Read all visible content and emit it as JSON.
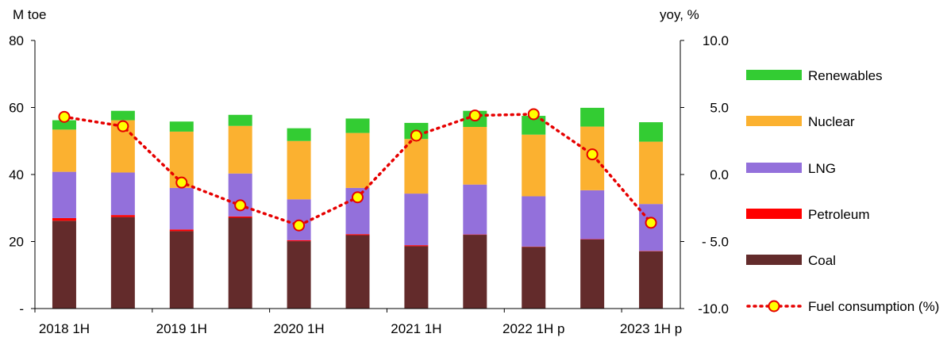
{
  "chart_data": {
    "type": "bar",
    "stacked": true,
    "left_unit": "M toe",
    "right_unit": "yoy, %",
    "y_left": {
      "min": 0,
      "max": 80,
      "ticks": [
        0,
        20,
        40,
        60,
        80
      ],
      "tick_labels": [
        "-",
        "20",
        "40",
        "60",
        "80"
      ]
    },
    "y_right": {
      "min": -10,
      "max": 10,
      "ticks": [
        -10,
        -5,
        0,
        5,
        10
      ],
      "tick_labels": [
        "-10.0",
        "- 5.0",
        "0.0",
        "5.0",
        "10.0"
      ]
    },
    "x_tick_labels": [
      {
        "index": 0,
        "label": "2018 1H"
      },
      {
        "index": 2,
        "label": "2019 1H"
      },
      {
        "index": 4,
        "label": "2020 1H"
      },
      {
        "index": 6,
        "label": "2021 1H"
      },
      {
        "index": 8,
        "label": "2022 1H p"
      },
      {
        "index": 10,
        "label": "2023 1H p"
      }
    ],
    "periods": 11,
    "series": [
      {
        "name": "Coal",
        "color": "#632B2B",
        "values": [
          26.2,
          27.3,
          23.1,
          27.1,
          20.1,
          21.9,
          18.6,
          22.0,
          18.4,
          20.6,
          17.1
        ]
      },
      {
        "name": "Petroleum",
        "color": "#FF0000",
        "values": [
          0.8,
          0.6,
          0.5,
          0.4,
          0.3,
          0.3,
          0.3,
          0.1,
          0.1,
          0.1,
          0.1
        ]
      },
      {
        "name": "LNG",
        "color": "#9370DB",
        "values": [
          13.8,
          12.7,
          12.4,
          12.8,
          12.2,
          13.8,
          15.4,
          14.9,
          15.0,
          14.6,
          14.0
        ]
      },
      {
        "name": "Nuclear",
        "color": "#FBB130",
        "values": [
          12.6,
          15.6,
          16.8,
          14.2,
          17.4,
          16.4,
          16.3,
          17.2,
          18.4,
          19.0,
          18.6
        ]
      },
      {
        "name": "Renewables",
        "color": "#33CC33",
        "values": [
          2.8,
          2.8,
          3.0,
          3.3,
          3.8,
          4.3,
          4.8,
          4.8,
          5.6,
          5.6,
          5.8
        ]
      }
    ],
    "line": {
      "name": "Fuel consumption (%)",
      "axis": "right",
      "color": "#E60000",
      "marker_fill": "#FFFF00",
      "values": [
        4.3,
        3.6,
        -0.6,
        -2.3,
        -3.8,
        -1.7,
        2.9,
        4.4,
        4.5,
        1.5,
        -3.6
      ]
    },
    "legend_position": "right",
    "grid": false
  }
}
